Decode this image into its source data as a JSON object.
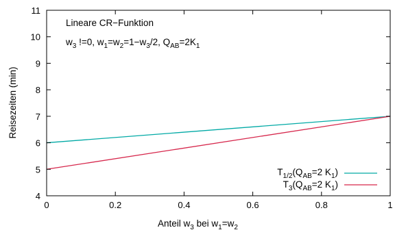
{
  "chart_data": {
    "type": "line",
    "xlabel": {
      "a": "Anteil w",
      "s": "3",
      "b": " bei w",
      "s2": "1",
      "c": "=w",
      "s3": "2"
    },
    "ylabel": "Reisezeiten (min)",
    "xlim": [
      0,
      1
    ],
    "ylim": [
      4,
      11
    ],
    "xticks": [
      "0",
      "0.2",
      "0.4",
      "0.6",
      "0.8",
      "1"
    ],
    "yticks": [
      "4",
      "5",
      "6",
      "7",
      "8",
      "9",
      "10",
      "11"
    ],
    "grid": false,
    "legend_position": "bottom-right",
    "annotation": {
      "line1": "Lineare CR−Funktion",
      "line2": {
        "a": "w",
        "s1": "3",
        "b": " !=0, w",
        "s2": "1",
        "c": "=w",
        "s3": "2",
        "d": "=1−w",
        "s4": "3",
        "e": "/2, Q",
        "s5": "AB",
        "f": "=2K",
        "s6": "1"
      }
    },
    "series": [
      {
        "name": "T1/2(QAB=2 K1)",
        "label": {
          "a": "T",
          "s1": "1/2",
          "b": "(Q",
          "s2": "AB",
          "c": "=2 K",
          "s3": "1",
          "d": ")"
        },
        "color": "#00a9a5",
        "x": [
          0,
          1
        ],
        "y": [
          6,
          7
        ]
      },
      {
        "name": "T3(QAB=2 K1)",
        "label": {
          "a": "T",
          "s1": "3",
          "b": "(Q",
          "s2": "AB",
          "c": "=2 K",
          "s3": "1",
          "d": ")"
        },
        "color": "#d6264b",
        "x": [
          0,
          1
        ],
        "y": [
          5,
          7
        ]
      }
    ]
  }
}
